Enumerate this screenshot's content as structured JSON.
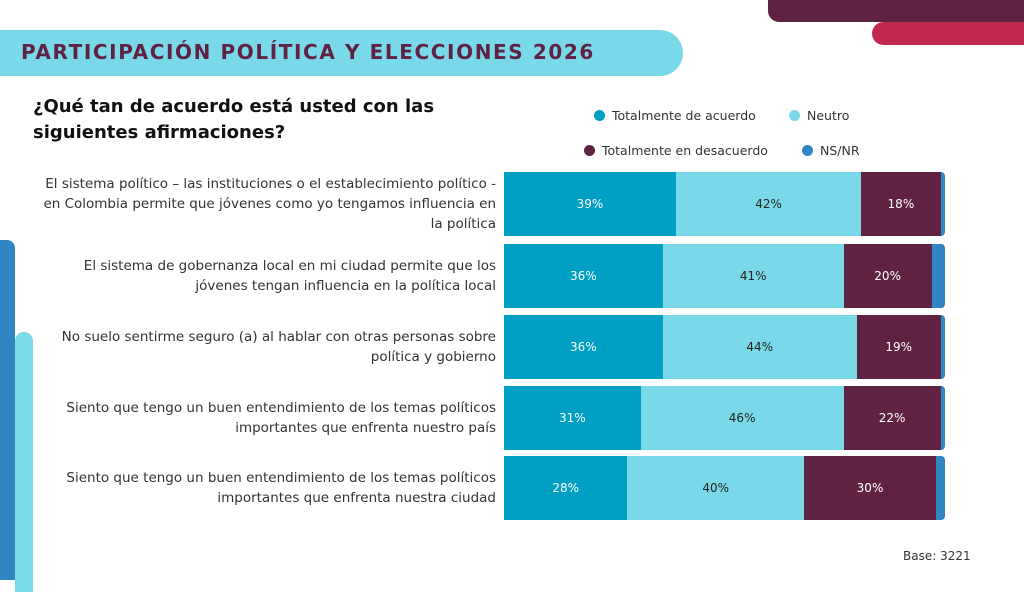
{
  "header": {
    "title": "PARTICIPACIÓN POLÍTICA Y ELECCIONES 2026"
  },
  "colors": {
    "accent_cyan": "#7ad9e8",
    "brand_purple": "#5f2242",
    "brand_red": "#c0294d",
    "brand_blue": "#2f86c2"
  },
  "chart_data": {
    "type": "bar",
    "orientation": "horizontal",
    "stacked": true,
    "title": "¿Qué tan de acuerdo está usted con las siguientes afirmaciones?",
    "categories": [
      "El sistema político – las instituciones o el establecimiento político - en Colombia permite que jóvenes como yo tengamos influencia en la política",
      "El sistema de gobernanza local en mi ciudad permite que los jóvenes tengan influencia en la política local",
      "No suelo sentirme seguro (a) al hablar con otras personas sobre política y gobierno",
      "Siento que tengo un buen entendimiento de los temas políticos importantes que enfrenta nuestro país",
      "Siento que tengo un buen entendimiento de los temas políticos importantes que enfrenta nuestra ciudad"
    ],
    "series": [
      {
        "name": "Totalmente de acuerdo",
        "color": "#009fc4",
        "text_color": "#ffffff",
        "values": [
          39,
          36,
          36,
          31,
          28
        ]
      },
      {
        "name": "Neutro",
        "color": "#7ad9e8",
        "text_color": "#222222",
        "values": [
          42,
          41,
          44,
          46,
          40
        ]
      },
      {
        "name": "Totalmente en desacuerdo",
        "color": "#5f2242",
        "text_color": "#ffffff",
        "values": [
          18,
          20,
          19,
          22,
          30
        ]
      },
      {
        "name": "NS/NR",
        "color": "#2f86c2",
        "text_color": "#ffffff",
        "values": [
          1,
          3,
          1,
          1,
          2
        ]
      }
    ],
    "data_labels": [
      [
        "39%",
        "42%",
        "18%",
        ""
      ],
      [
        "36%",
        "41%",
        "20%",
        ""
      ],
      [
        "36%",
        "44%",
        "19%",
        ""
      ],
      [
        "31%",
        "46%",
        "22%",
        ""
      ],
      [
        "28%",
        "40%",
        "30%",
        ""
      ]
    ],
    "xlim": [
      0,
      100
    ],
    "legend_placement": "top-right",
    "grid": false
  },
  "footer": {
    "base": "Base: 3221"
  }
}
